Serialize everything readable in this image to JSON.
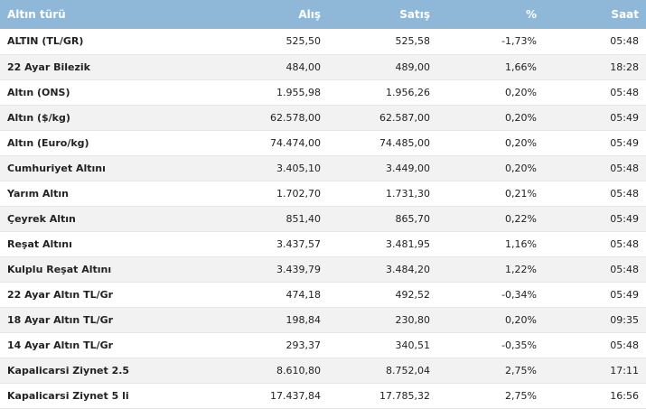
{
  "header": {
    "name": "Altın türü",
    "buy": "Alış",
    "sell": "Satış",
    "pct": "%",
    "time": "Saat"
  },
  "rows": [
    {
      "name": "ALTIN (TL/GR)",
      "buy": "525,50",
      "sell": "525,58",
      "pct": "-1,73%",
      "time": "05:48"
    },
    {
      "name": "22 Ayar Bilezik",
      "buy": "484,00",
      "sell": "489,00",
      "pct": "1,66%",
      "time": "18:28"
    },
    {
      "name": "Altın (ONS)",
      "buy": "1.955,98",
      "sell": "1.956,26",
      "pct": "0,20%",
      "time": "05:48"
    },
    {
      "name": "Altın ($/kg)",
      "buy": "62.578,00",
      "sell": "62.587,00",
      "pct": "0,20%",
      "time": "05:49"
    },
    {
      "name": "Altın (Euro/kg)",
      "buy": "74.474,00",
      "sell": "74.485,00",
      "pct": "0,20%",
      "time": "05:49"
    },
    {
      "name": "Cumhuriyet Altını",
      "buy": "3.405,10",
      "sell": "3.449,00",
      "pct": "0,20%",
      "time": "05:48"
    },
    {
      "name": "Yarım Altın",
      "buy": "1.702,70",
      "sell": "1.731,30",
      "pct": "0,21%",
      "time": "05:48"
    },
    {
      "name": "Çeyrek Altın",
      "buy": "851,40",
      "sell": "865,70",
      "pct": "0,22%",
      "time": "05:49"
    },
    {
      "name": "Reşat Altını",
      "buy": "3.437,57",
      "sell": "3.481,95",
      "pct": "1,16%",
      "time": "05:48"
    },
    {
      "name": "Kulplu Reşat Altını",
      "buy": "3.439,79",
      "sell": "3.484,20",
      "pct": "1,22%",
      "time": "05:48"
    },
    {
      "name": "22 Ayar Altın TL/Gr",
      "buy": "474,18",
      "sell": "492,52",
      "pct": "-0,34%",
      "time": "05:49"
    },
    {
      "name": "18 Ayar Altın TL/Gr",
      "buy": "198,84",
      "sell": "230,80",
      "pct": "0,20%",
      "time": "09:35"
    },
    {
      "name": "14 Ayar Altın TL/Gr",
      "buy": "293,37",
      "sell": "340,51",
      "pct": "-0,35%",
      "time": "05:48"
    },
    {
      "name": "Kapalicarsi Ziynet 2.5",
      "buy": "8.610,80",
      "sell": "8.752,04",
      "pct": "2,75%",
      "time": "17:11"
    },
    {
      "name": "Kapalicarsi Ziynet 5 li",
      "buy": "17.437,84",
      "sell": "17.785,32",
      "pct": "2,75%",
      "time": "16:56"
    }
  ],
  "colors": {
    "header_bg": "#8fb8d8",
    "alt_row_bg": "#f2f2f2"
  }
}
